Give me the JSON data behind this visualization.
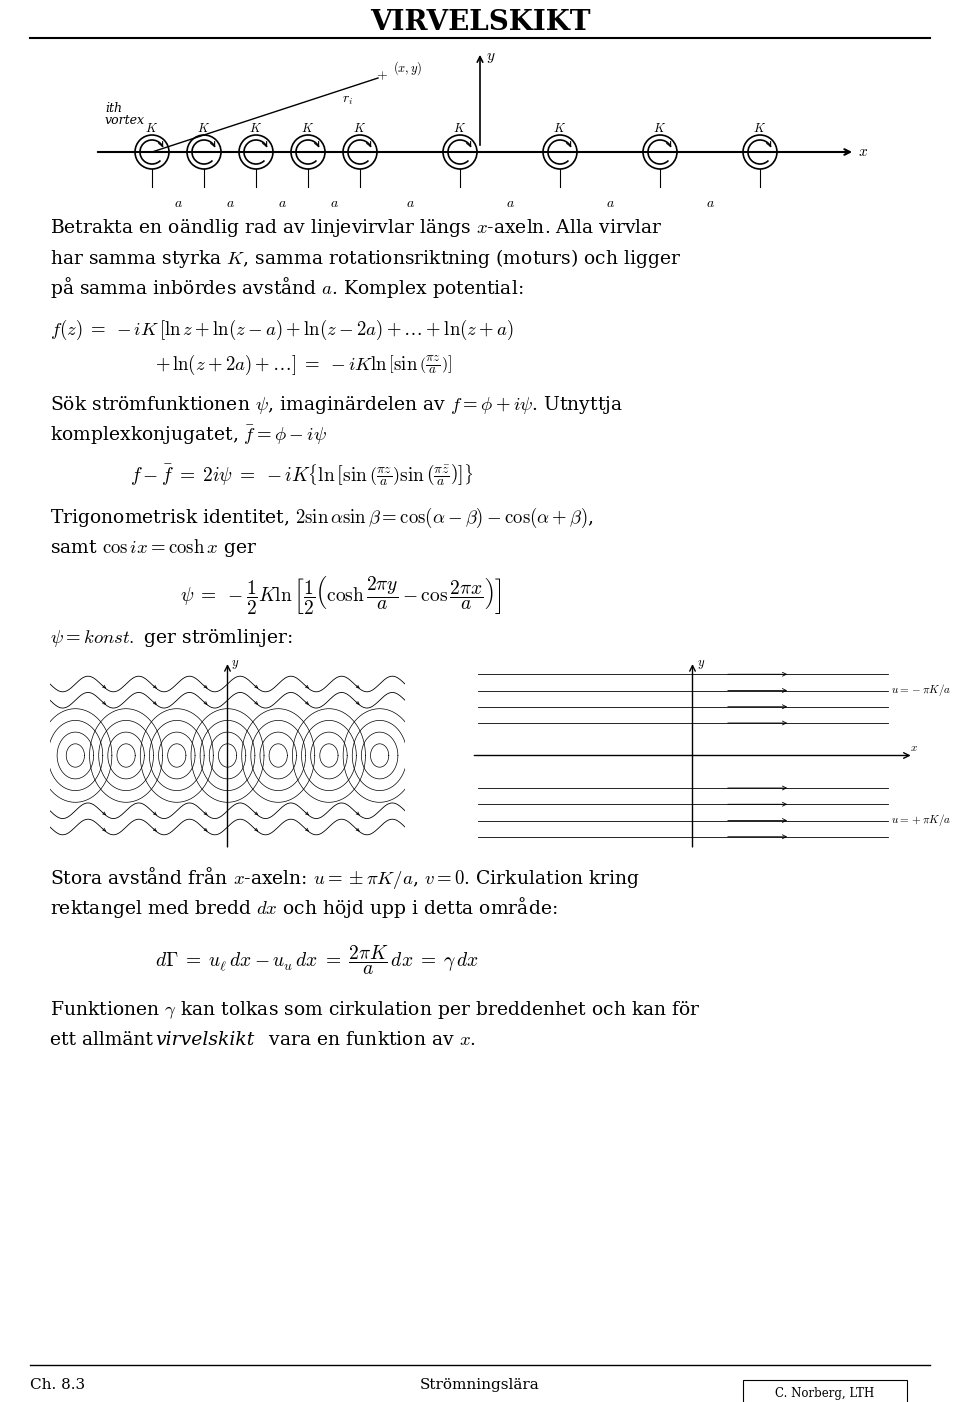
{
  "title": "VIRVELSKIKT",
  "bg_color": "#ffffff",
  "text_color": "#000000",
  "footer_left": "Ch. 8.3",
  "footer_center": "Strömningslära",
  "footer_right": "C. Norberg, LTH",
  "fig_width": 9.6,
  "fig_height": 14.02,
  "body_lines": [
    "Betrakta en oändlig rad av linjevirvlar längs $x$-axeln. Alla virvlar",
    "har samma styrka $K$, samma rotationsriktning (moturs) och ligger",
    "på samma inbördes avstånd $a$. Komplex potential:"
  ],
  "line1_eq": "$f(z) \\;=\\; -iK\\,[\\ln z + \\ln(z-a) + \\ln(z-2a) + \\ldots + \\ln(z+a)$",
  "line2_eq": "$+\\, \\ln(z+2a) + \\ldots] \\;=\\; -iK\\ln\\left[\\sin\\left(\\dfrac{\\pi z}{a}\\right)\\right]$",
  "sok_line1": "Sök strömfunktionen $\\psi$, imaginärdelen av $f = \\phi + i\\psi$. Utnyttja",
  "sok_line2": "komplexkonjugatet, $\\bar{f} = \\phi - i\\psi$",
  "eq_f_fbar": "$f - \\bar{f} \\;=\\; 2i\\psi \\;=\\; -iK\\left\\{\\ln\\left[\\sin\\left(\\frac{\\pi z}{a}\\right)\\sin\\left(\\frac{\\pi \\bar{z}}{a}\\right)\\right]\\right\\}$",
  "trig_line1": "Trigonometrisk identitet, $2\\sin\\alpha\\sin\\beta = \\cos(\\alpha-\\beta) - \\cos(\\alpha+\\beta)$,",
  "trig_line2": "samt $\\cos ix = \\cosh x$ ger",
  "psi_eq": "$\\psi \\;=\\; -\\dfrac{1}{2}K\\ln\\left[\\dfrac{1}{2}\\left(\\cosh\\dfrac{2\\pi y}{a} - \\cos\\dfrac{2\\pi x}{a}\\right)\\right]$",
  "konst_line": "$\\psi = konst.$ ger strömlinjer:",
  "stora_line1": "Stora avstånd från $x$-axeln: $u = \\pm\\pi K/a$, $v = 0$. Cirkulation kring",
  "stora_line2": "rektangel med bredd $dx$ och höjd upp i detta område:",
  "gamma_eq": "$d\\Gamma \\;=\\; u_\\ell\\,dx - u_u\\,dx \\;=\\; \\dfrac{2\\pi K}{a}\\,dx \\;=\\; \\gamma\\,dx$",
  "funk_line1": "Funktionen $\\gamma$ kan tolkas som cirkulation per breddenhet och kan för",
  "funk_line2": "ett allmänt \\it{virvelskikt} vara en funktion av $x$."
}
